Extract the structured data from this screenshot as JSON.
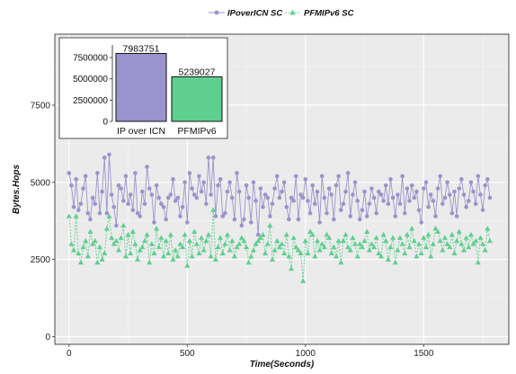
{
  "chart_data": [
    {
      "type": "line",
      "xlabel": "Time(Seconds)",
      "ylabel": "Bytes.Hops",
      "xlim": [
        -60,
        1860
      ],
      "ylim": [
        -250,
        9800
      ],
      "x_ticks": [
        0,
        500,
        1000,
        1500
      ],
      "y_ticks": [
        0,
        2500,
        5000,
        7500
      ],
      "grid": true,
      "legend_position": "top",
      "x": [
        0,
        10,
        20,
        30,
        40,
        50,
        60,
        70,
        80,
        90,
        100,
        110,
        120,
        130,
        140,
        150,
        160,
        170,
        180,
        190,
        200,
        210,
        220,
        230,
        240,
        250,
        260,
        270,
        280,
        290,
        300,
        310,
        320,
        330,
        340,
        350,
        360,
        370,
        380,
        390,
        400,
        410,
        420,
        430,
        440,
        450,
        460,
        470,
        480,
        490,
        500,
        510,
        520,
        530,
        540,
        550,
        560,
        570,
        580,
        590,
        600,
        610,
        620,
        630,
        640,
        650,
        660,
        670,
        680,
        690,
        700,
        710,
        720,
        730,
        740,
        750,
        760,
        770,
        780,
        790,
        800,
        810,
        820,
        830,
        840,
        850,
        860,
        870,
        880,
        890,
        900,
        910,
        920,
        930,
        940,
        950,
        960,
        970,
        980,
        990,
        1000,
        1010,
        1020,
        1030,
        1040,
        1050,
        1060,
        1070,
        1080,
        1090,
        1100,
        1110,
        1120,
        1130,
        1140,
        1150,
        1160,
        1170,
        1180,
        1190,
        1200,
        1210,
        1220,
        1230,
        1240,
        1250,
        1260,
        1270,
        1280,
        1290,
        1300,
        1310,
        1320,
        1330,
        1340,
        1350,
        1360,
        1370,
        1380,
        1390,
        1400,
        1410,
        1420,
        1430,
        1440,
        1450,
        1460,
        1470,
        1480,
        1490,
        1500,
        1510,
        1520,
        1530,
        1540,
        1550,
        1560,
        1570,
        1580,
        1590,
        1600,
        1610,
        1620,
        1630,
        1640,
        1650,
        1660,
        1670,
        1680,
        1690,
        1700,
        1710,
        1720,
        1730,
        1740,
        1750,
        1760,
        1770,
        1780
      ],
      "series": [
        {
          "name": "IPoverICN SC",
          "color": "#9a94cc",
          "marker": "circle",
          "values": [
            5300,
            4900,
            4200,
            5100,
            4100,
            4300,
            4800,
            5200,
            4000,
            3800,
            4500,
            4300,
            5300,
            4000,
            4700,
            5800,
            4000,
            5900,
            4600,
            4200,
            3600,
            4900,
            4800,
            4400,
            5200,
            4300,
            4600,
            4100,
            5300,
            4000,
            3900,
            4700,
            4300,
            5500,
            4800,
            4600,
            3700,
            4900,
            4500,
            4300,
            4200,
            3800,
            4500,
            4600,
            5100,
            4400,
            4500,
            3900,
            4200,
            5000,
            3700,
            5300,
            4800,
            4600,
            4500,
            5200,
            4700,
            5000,
            4300,
            5800,
            4600,
            5800,
            3900,
            4900,
            5100,
            3900,
            4000,
            4700,
            5000,
            4500,
            3800,
            5300,
            4700,
            3600,
            3800,
            4900,
            4500,
            3700,
            5000,
            4400,
            3300,
            4800,
            4200,
            4600,
            4500,
            3900,
            4300,
            4800,
            5200,
            4500,
            4700,
            5000,
            4200,
            3800,
            4500,
            4400,
            5200,
            3800,
            4600,
            4500,
            5100,
            4400,
            4000,
            4900,
            4300,
            4700,
            3700,
            5200,
            4500,
            4000,
            4800,
            4600,
            3800,
            4900,
            5200,
            4100,
            4300,
            4700,
            5300,
            3900,
            4600,
            5000,
            4400,
            3800,
            4100,
            4700,
            3900,
            4300,
            4800,
            4500,
            4000,
            4700,
            4600,
            4400,
            4900,
            4300,
            5100,
            4500,
            3900,
            4600,
            4300,
            5200,
            4000,
            4800,
            4400,
            4900,
            4500,
            4700,
            4100,
            3700,
            4800,
            5000,
            4200,
            4600,
            4400,
            3900,
            4800,
            5200,
            4300,
            4500,
            5000,
            4600,
            4000,
            4700,
            3900,
            4800,
            5100,
            4600,
            4200,
            4400,
            5000,
            4700,
            4300,
            5200,
            4600,
            4100,
            4900,
            5100,
            4500
          ]
        },
        {
          "name": "PFMIPv6 SC",
          "color": "#5fcf8f",
          "marker": "triangle",
          "values": [
            3900,
            3000,
            2800,
            3900,
            2700,
            2400,
            2900,
            3100,
            2600,
            3400,
            3000,
            3100,
            2400,
            2900,
            2500,
            2700,
            3500,
            3900,
            3200,
            3000,
            3100,
            2800,
            3200,
            3600,
            2600,
            3300,
            2700,
            3400,
            3000,
            2500,
            2800,
            2900,
            3100,
            3300,
            2400,
            3000,
            2700,
            3500,
            2900,
            3200,
            2600,
            3100,
            2700,
            3300,
            2500,
            2800,
            2600,
            3000,
            2900,
            3300,
            2300,
            3100,
            2600,
            3400,
            3000,
            2700,
            3200,
            2800,
            3100,
            3300,
            2600,
            4100,
            2500,
            2900,
            3200,
            2700,
            3000,
            3300,
            2800,
            3100,
            2600,
            2900,
            3000,
            3200,
            3100,
            2900,
            2400,
            2600,
            2800,
            3000,
            3100,
            3200,
            3300,
            2700,
            3000,
            3600,
            2500,
            2800,
            3100,
            2900,
            3000,
            2700,
            3300,
            2600,
            2200,
            3200,
            2900,
            2800,
            2700,
            1800,
            3100,
            2700,
            3400,
            3300,
            2600,
            3100,
            2800,
            3000,
            2900,
            3300,
            3200,
            2700,
            2900,
            2600,
            3100,
            2400,
            3100,
            3300,
            2900,
            2800,
            3200,
            3000,
            2600,
            3000,
            2900,
            3100,
            3400,
            2800,
            3000,
            2900,
            3200,
            2700,
            2600,
            3300,
            3100,
            2500,
            2900,
            3200,
            2400,
            2800,
            3200,
            3000,
            2700,
            3300,
            2900,
            3500,
            3100,
            2600,
            3000,
            2700,
            3200,
            2900,
            3300,
            2600,
            3000,
            3500,
            3400,
            3100,
            2800,
            3200,
            3000,
            2900,
            3300,
            2700,
            3100,
            3400,
            3000,
            2800,
            3200,
            2900,
            3300,
            3000,
            3100,
            2400,
            3200,
            3000,
            2800,
            3500,
            3100
          ]
        }
      ]
    },
    {
      "type": "bar",
      "categories": [
        "IP over ICN",
        "PFMIPv6"
      ],
      "values": [
        7983751,
        5239027
      ],
      "data_labels": [
        "7983751",
        "5239027"
      ],
      "colors": [
        "#9a94cc",
        "#5fcf8f"
      ],
      "y_ticks": [
        0,
        2500000,
        5000000,
        7500000
      ],
      "y_tick_labels": [
        "0",
        "2500000",
        "5000000",
        "7500000"
      ],
      "ylim": [
        0,
        9300000
      ]
    }
  ]
}
